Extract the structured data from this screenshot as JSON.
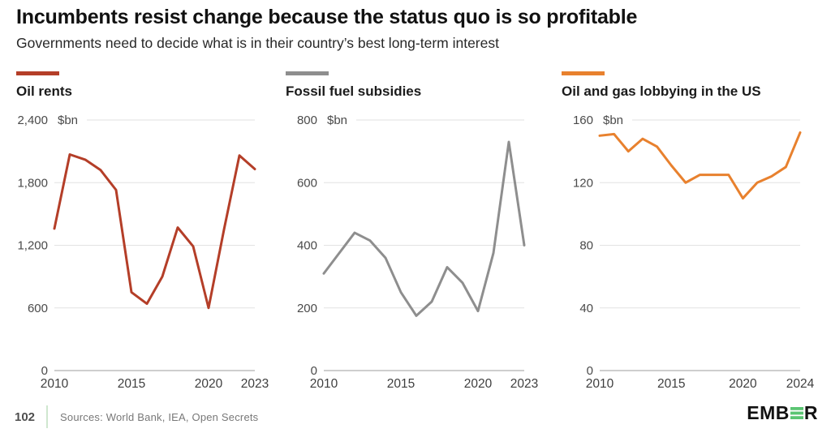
{
  "header": {
    "title": "Incumbents resist change because the status quo is so profitable",
    "subtitle": "Governments need to decide what is in their country’s best long-term interest"
  },
  "chart_data": [
    {
      "type": "line",
      "title": "Oil rents",
      "unit": "$bn",
      "color": "#b43e28",
      "years": [
        2010,
        2011,
        2012,
        2013,
        2014,
        2015,
        2016,
        2017,
        2018,
        2019,
        2020,
        2021,
        2022,
        2023
      ],
      "values": [
        1360,
        2070,
        2020,
        1920,
        1730,
        750,
        640,
        900,
        1370,
        1190,
        600,
        1350,
        2060,
        1930
      ],
      "ylim": [
        0,
        2400
      ],
      "yticks": [
        2400,
        1800,
        1200,
        600,
        0
      ],
      "ytick_labels": [
        "2,400",
        "1,800",
        "1,200",
        "600",
        "0"
      ],
      "xticks": [
        2010,
        2015,
        2020,
        2023
      ],
      "grid": true,
      "legend_position": "none"
    },
    {
      "type": "line",
      "title": "Fossil fuel subsidies",
      "unit": "$bn",
      "color": "#8e8e8e",
      "years": [
        2010,
        2011,
        2012,
        2013,
        2014,
        2015,
        2016,
        2017,
        2018,
        2019,
        2020,
        2021,
        2022,
        2023
      ],
      "values": [
        310,
        375,
        440,
        415,
        360,
        250,
        175,
        220,
        330,
        280,
        190,
        375,
        730,
        400
      ],
      "ylim": [
        0,
        800
      ],
      "yticks": [
        800,
        600,
        400,
        200,
        0
      ],
      "ytick_labels": [
        "800",
        "600",
        "400",
        "200",
        "0"
      ],
      "xticks": [
        2010,
        2015,
        2020,
        2023
      ],
      "grid": true,
      "legend_position": "none"
    },
    {
      "type": "line",
      "title": "Oil and gas lobbying in the US",
      "unit": "$bn",
      "color": "#e8812e",
      "years": [
        2010,
        2011,
        2012,
        2013,
        2014,
        2015,
        2016,
        2017,
        2018,
        2019,
        2020,
        2021,
        2022,
        2023,
        2024
      ],
      "values": [
        150,
        151,
        140,
        148,
        143,
        131,
        120,
        125,
        125,
        125,
        110,
        120,
        124,
        130,
        152
      ],
      "ylim": [
        0,
        160
      ],
      "yticks": [
        160,
        120,
        80,
        40,
        0
      ],
      "ytick_labels": [
        "160",
        "120",
        "80",
        "40",
        "0"
      ],
      "xticks": [
        2010,
        2015,
        2020,
        2024
      ],
      "grid": true,
      "legend_position": "none"
    }
  ],
  "footer": {
    "page_number": "102",
    "sources": "Sources: World Bank, IEA, Open Secrets",
    "logo": {
      "prefix": "EMB",
      "suffix": "R",
      "green_color": "#5bc573"
    }
  },
  "style": {
    "grid_color": "#e2e2e2",
    "axis_color": "#9d9d9d",
    "background": "#ffffff"
  }
}
